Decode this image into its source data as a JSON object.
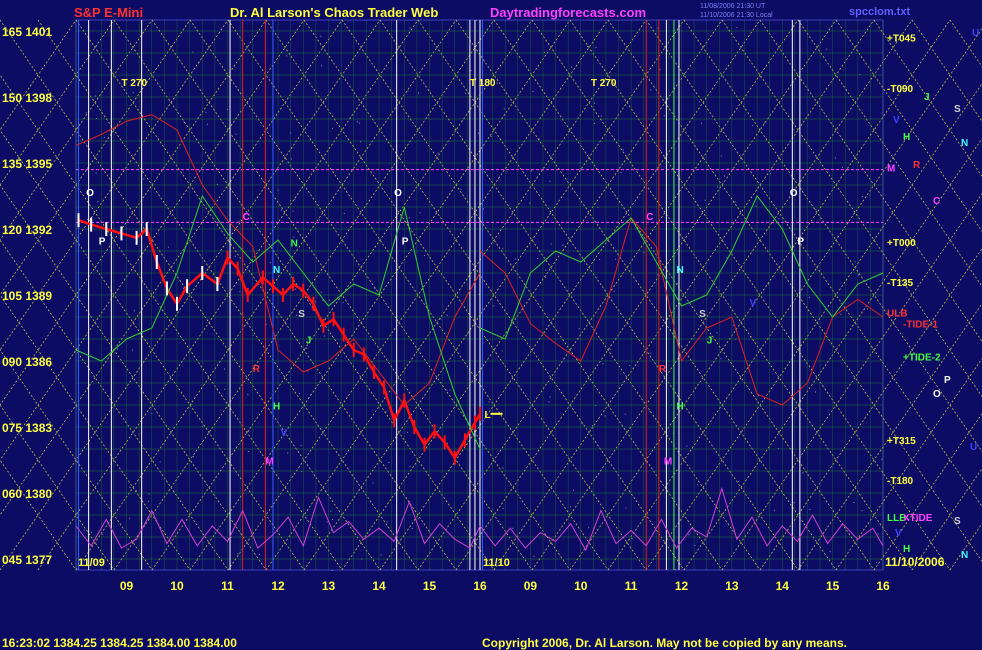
{
  "header": {
    "ticker": "S&P E-Mini",
    "title": "Dr. Al Larson's Chaos Trader Web",
    "site": "Daytradingforecasts.com",
    "file": "spcclom.txt",
    "timestamp_1": "11/08/2006 21:30 UT",
    "timestamp_2": "11/10/2006 21:30 Local"
  },
  "footer": {
    "quote": "16:23:02  1384.25  1384.25  1384.00  1384.00",
    "copyright": "Copyright 2006, Dr. Al Larson. May not be copied by any means."
  },
  "colors": {
    "background": "#0c0c64",
    "grid": "#2a8a2a",
    "price_up": "#ffffff",
    "price_down": "#ff1010",
    "cycle_red": "#e02020",
    "cycle_green": "#30d030",
    "cycle_magenta": "#d040d0",
    "tide_lines": "#e0e040"
  },
  "chart_data": {
    "type": "line",
    "title": "S&P E-Mini",
    "ylim": [
      1376.5,
      1401.5
    ],
    "y_ticks": [
      {
        "label": "165 1401",
        "value": 1401
      },
      {
        "label": "150 1398",
        "value": 1398
      },
      {
        "label": "135 1395",
        "value": 1395
      },
      {
        "label": "120 1392",
        "value": 1392
      },
      {
        "label": "105 1389",
        "value": 1389
      },
      {
        "label": "090 1386",
        "value": 1386
      },
      {
        "label": "075 1383",
        "value": 1383
      },
      {
        "label": "060 1380",
        "value": 1380
      },
      {
        "label": "045 1377",
        "value": 1377
      }
    ],
    "x_hours": [
      8,
      16
    ],
    "x_tick_labels": [
      "09",
      "10",
      "11",
      "12",
      "13",
      "14",
      "15",
      "16",
      "09",
      "10",
      "11",
      "12",
      "13",
      "14",
      "15",
      "16"
    ],
    "x_ticks_day1": [
      9,
      10,
      11,
      12,
      13,
      14,
      15,
      16
    ],
    "x_ticks_day2": [
      9,
      10,
      11,
      12,
      13,
      14,
      15,
      16
    ],
    "date_labels": [
      "11/09",
      "11/10",
      "11/10/2006"
    ],
    "right_labels": [
      {
        "text": "+T045",
        "value": 1400.7,
        "color": "#ffff40"
      },
      {
        "text": "-T090",
        "value": 1398.4,
        "color": "#ffff40"
      },
      {
        "text": "M",
        "value": 1394.8,
        "color": "#ff40ff"
      },
      {
        "text": "+T000",
        "value": 1391.4,
        "color": "#ffff40"
      },
      {
        "text": "-T135",
        "value": 1389.6,
        "color": "#ffff40"
      },
      {
        "text": "ULB",
        "value": 1388.2,
        "color": "#ff3030"
      },
      {
        "text": "-TIDE-1",
        "value": 1387.7,
        "color": "#ff3030"
      },
      {
        "text": "+TIDE-2",
        "value": 1386.2,
        "color": "#40ff40"
      },
      {
        "text": "+T315",
        "value": 1382.4,
        "color": "#ffff40"
      },
      {
        "text": "-T180",
        "value": 1380.6,
        "color": "#ffff40"
      },
      {
        "text": "LLB",
        "value": 1378.9,
        "color": "#40ff40"
      },
      {
        "text": "XTIDE",
        "value": 1378.9,
        "color": "#ff40ff"
      }
    ],
    "legend_letters": [
      {
        "t": "U",
        "c": "#4040ff"
      },
      {
        "t": "J",
        "c": "#40ff40"
      },
      {
        "t": "S",
        "c": "#d0d0d0"
      },
      {
        "t": "V",
        "c": "#4040ff"
      },
      {
        "t": "H",
        "c": "#40ff40"
      },
      {
        "t": "N",
        "c": "#40ffff"
      },
      {
        "t": "R",
        "c": "#ff3030"
      },
      {
        "t": "C",
        "c": "#ff40ff"
      },
      {
        "t": "P",
        "c": "#ffffff"
      },
      {
        "t": "O",
        "c": "#ffffff"
      },
      {
        "t": "U",
        "c": "#4040ff"
      },
      {
        "t": "S",
        "c": "#d0d0d0"
      },
      {
        "t": "V",
        "c": "#4040ff"
      },
      {
        "t": "H",
        "c": "#40ff40"
      },
      {
        "t": "N",
        "c": "#40ffff"
      }
    ],
    "chart_markers": [
      {
        "t": "T 270",
        "day": 1,
        "h": 8.9,
        "value": 1398.5,
        "c": "#ffff40"
      },
      {
        "t": "T 180",
        "day": 1,
        "h": 15.8,
        "value": 1398.5,
        "c": "#ffff40"
      },
      {
        "t": "T 270",
        "day": 2,
        "h": 10.2,
        "value": 1398.5,
        "c": "#ffff40"
      },
      {
        "t": "O",
        "day": 1,
        "h": 8.2,
        "value": 1393.5,
        "c": "#ffffff"
      },
      {
        "t": "P",
        "day": 1,
        "h": 8.45,
        "value": 1391.3,
        "c": "#ffffff"
      },
      {
        "t": "O",
        "day": 1,
        "h": 14.3,
        "value": 1393.5,
        "c": "#ffffff"
      },
      {
        "t": "P",
        "day": 1,
        "h": 14.45,
        "value": 1391.3,
        "c": "#ffffff"
      },
      {
        "t": "O",
        "day": 2,
        "h": 14.15,
        "value": 1393.5,
        "c": "#ffffff"
      },
      {
        "t": "P",
        "day": 2,
        "h": 14.3,
        "value": 1391.3,
        "c": "#ffffff"
      },
      {
        "t": "C",
        "day": 1,
        "h": 11.3,
        "value": 1392.4,
        "c": "#ff40ff"
      },
      {
        "t": "C",
        "day": 2,
        "h": 11.3,
        "value": 1392.4,
        "c": "#ff40ff"
      },
      {
        "t": "N",
        "day": 1,
        "h": 11.9,
        "value": 1390,
        "c": "#40ffff"
      },
      {
        "t": "N",
        "day": 2,
        "h": 11.9,
        "value": 1390,
        "c": "#40ffff"
      },
      {
        "t": "N",
        "day": 1,
        "h": 12.25,
        "value": 1391.2,
        "c": "#40ff40"
      },
      {
        "t": "S",
        "day": 1,
        "h": 12.4,
        "value": 1388,
        "c": "#d0d0d0"
      },
      {
        "t": "S",
        "day": 2,
        "h": 12.35,
        "value": 1388,
        "c": "#d0d0d0"
      },
      {
        "t": "J",
        "day": 1,
        "h": 12.55,
        "value": 1386.8,
        "c": "#40ff40"
      },
      {
        "t": "J",
        "day": 2,
        "h": 12.5,
        "value": 1386.8,
        "c": "#40ff40"
      },
      {
        "t": "H",
        "day": 1,
        "h": 11.9,
        "value": 1383.8,
        "c": "#40ff40"
      },
      {
        "t": "H",
        "day": 2,
        "h": 11.9,
        "value": 1383.8,
        "c": "#40ff40"
      },
      {
        "t": "M",
        "day": 1,
        "h": 11.75,
        "value": 1381.3,
        "c": "#ff40ff"
      },
      {
        "t": "M",
        "day": 2,
        "h": 11.65,
        "value": 1381.3,
        "c": "#ff40ff"
      },
      {
        "t": "V",
        "day": 1,
        "h": 12.05,
        "value": 1382.6,
        "c": "#4040ff"
      },
      {
        "t": "V",
        "day": 2,
        "h": 13.35,
        "value": 1388.5,
        "c": "#4040ff"
      },
      {
        "t": "R",
        "day": 1,
        "h": 11.5,
        "value": 1385.5,
        "c": "#ff3030"
      },
      {
        "t": "R",
        "day": 2,
        "h": 11.55,
        "value": 1385.5,
        "c": "#ff3030"
      }
    ],
    "series": [
      {
        "name": "S&P E-Mini",
        "color": "#ff1010",
        "x": [
          8.05,
          8.3,
          8.6,
          8.9,
          9.2,
          9.4,
          9.6,
          9.8,
          10.0,
          10.2,
          10.5,
          10.8,
          11.0,
          11.2,
          11.4,
          11.7,
          11.9,
          12.1,
          12.3,
          12.5,
          12.7,
          12.9,
          13.1,
          13.3,
          13.5,
          13.7,
          13.9,
          14.1,
          14.3,
          14.5,
          14.7,
          14.9,
          15.1,
          15.3,
          15.5,
          15.7,
          15.9,
          16.0
        ],
        "values": [
          1392.4,
          1392.2,
          1392.0,
          1391.8,
          1391.6,
          1392.0,
          1390.5,
          1389.3,
          1388.6,
          1389.4,
          1390.0,
          1389.5,
          1390.7,
          1390.2,
          1389.0,
          1389.8,
          1389.4,
          1389.0,
          1389.5,
          1389.2,
          1388.6,
          1387.6,
          1387.9,
          1387.2,
          1386.5,
          1386.3,
          1385.5,
          1384.8,
          1383.3,
          1384.2,
          1383.0,
          1382.2,
          1382.8,
          1382.3,
          1381.6,
          1382.4,
          1383.2,
          1383.6
        ]
      },
      {
        "name": "red cycle day 1",
        "color": "#e02020",
        "x": [
          8,
          8.5,
          9,
          9.5,
          10,
          10.5,
          11,
          11.5,
          12,
          12.5,
          13,
          13.5,
          14,
          14.5,
          15,
          15.5,
          16
        ],
        "values": [
          1395.8,
          1396.3,
          1396.9,
          1397.2,
          1396.5,
          1394.0,
          1392.4,
          1391.2,
          1386.5,
          1385.5,
          1386.0,
          1387.0,
          1385.5,
          1384.0,
          1385.0,
          1388.0,
          1390.0
        ]
      },
      {
        "name": "red cycle day 2",
        "color": "#e02020",
        "x": [
          8,
          8.5,
          9,
          9.5,
          10,
          10.5,
          11,
          11.5,
          12,
          12.5,
          13,
          13.5,
          14,
          14.5,
          15,
          15.5,
          16
        ],
        "values": [
          1391.0,
          1390.0,
          1387.7,
          1386.8,
          1386.0,
          1388.5,
          1392.5,
          1391.2,
          1386.0,
          1387.5,
          1388.0,
          1384.5,
          1384.0,
          1385.0,
          1388.0,
          1388.8,
          1388.0
        ]
      },
      {
        "name": "green cycle day 1",
        "color": "#30d030",
        "x": [
          8,
          8.5,
          9,
          9.5,
          10,
          10.5,
          11,
          11.5,
          12,
          12.5,
          13,
          13.5,
          14,
          14.5,
          15,
          15.5,
          16
        ],
        "values": [
          1386.5,
          1386.0,
          1387.0,
          1387.5,
          1390.0,
          1393.5,
          1391.8,
          1390.5,
          1391.5,
          1390.0,
          1388.5,
          1389.5,
          1389.0,
          1393.0,
          1388.0,
          1384.5,
          1382.0
        ]
      },
      {
        "name": "green cycle day 2",
        "color": "#30d030",
        "x": [
          8,
          8.5,
          9,
          9.5,
          10,
          10.5,
          11,
          11.5,
          12,
          12.5,
          13,
          13.5,
          14,
          14.5,
          15,
          15.5,
          16
        ],
        "values": [
          1387.5,
          1387.0,
          1390.0,
          1391.0,
          1390.5,
          1391.5,
          1392.5,
          1390.5,
          1388.5,
          1389.0,
          1391.0,
          1393.5,
          1392.0,
          1389.5,
          1388.0,
          1389.5,
          1390.0
        ]
      },
      {
        "name": "magenta oscillator day 1",
        "color": "#d040d0",
        "x": [
          8,
          8.3,
          8.6,
          8.9,
          9.2,
          9.5,
          9.8,
          10.1,
          10.4,
          10.7,
          11.0,
          11.3,
          11.6,
          11.9,
          12.2,
          12.5,
          12.8,
          13.1,
          13.4,
          13.7,
          14.0,
          14.3,
          14.6,
          14.9,
          15.2,
          15.5,
          15.8,
          16.0
        ],
        "values": [
          1378.5,
          1377.6,
          1378.8,
          1377.5,
          1377.9,
          1379.2,
          1377.7,
          1378.8,
          1377.6,
          1378.5,
          1377.8,
          1379.2,
          1377.5,
          1378.1,
          1378.9,
          1377.6,
          1379.8,
          1378.2,
          1378.7,
          1377.9,
          1378.4,
          1377.8,
          1379.6,
          1377.7,
          1378.6,
          1377.9,
          1377.5,
          1378.5
        ]
      },
      {
        "name": "magenta oscillator day 2",
        "color": "#d040d0",
        "x": [
          8,
          8.3,
          8.6,
          8.9,
          9.2,
          9.5,
          9.8,
          10.1,
          10.4,
          10.7,
          11.0,
          11.3,
          11.6,
          11.9,
          12.2,
          12.5,
          12.8,
          13.1,
          13.4,
          13.7,
          14.0,
          14.3,
          14.6,
          14.9,
          15.2,
          15.5,
          15.8,
          16.0
        ],
        "values": [
          1378.5,
          1377.6,
          1378.4,
          1377.5,
          1378.2,
          1377.8,
          1378.6,
          1377.4,
          1379.2,
          1377.7,
          1378.3,
          1377.6,
          1378.8,
          1377.5,
          1378.4,
          1378.0,
          1380.2,
          1377.9,
          1378.9,
          1377.6,
          1378.5,
          1377.8,
          1379.0,
          1377.7,
          1378.6,
          1377.9,
          1378.4,
          1377.6
        ]
      }
    ],
    "horizontal_lines": [
      {
        "value": 1394.7,
        "color": "#ff40ff"
      },
      {
        "value": 1392.3,
        "color": "#ff40ff"
      }
    ],
    "grid": true
  }
}
